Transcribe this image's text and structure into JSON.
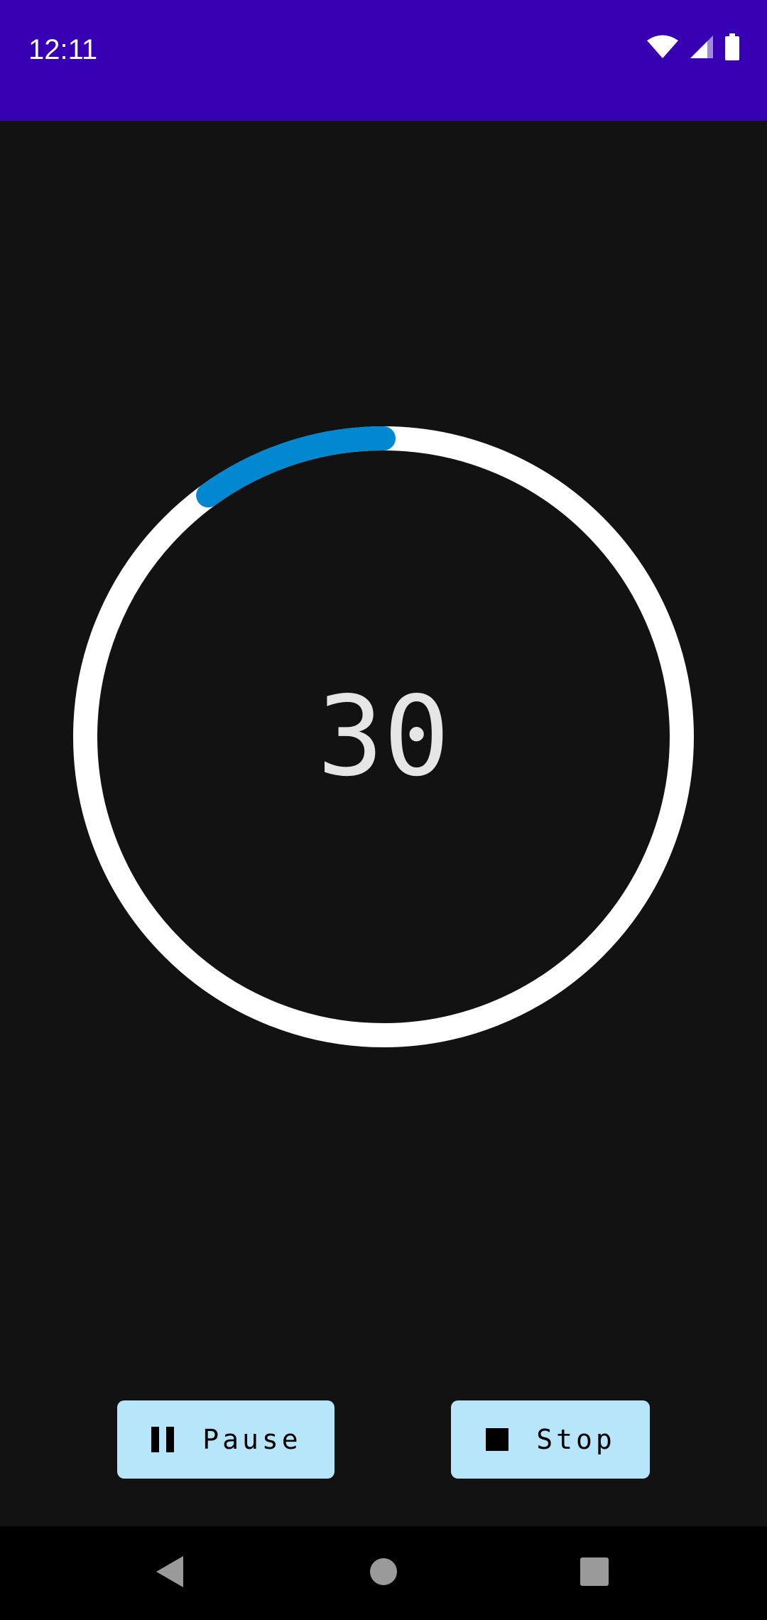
{
  "status_bar": {
    "time": "12:11",
    "background_color": "#3700B3",
    "icons": [
      "wifi-icon",
      "signal-icon",
      "battery-icon"
    ]
  },
  "timer": {
    "value": "30",
    "progress_fraction": 0.1,
    "ring_color": "#FFFFFF",
    "progress_color": "#0288D1"
  },
  "controls": {
    "pause_label": "Pause",
    "pause_icon": "pause-icon",
    "stop_label": "Stop",
    "stop_icon": "stop-icon",
    "button_color": "#B7E6FA"
  },
  "nav_bar": {
    "icons": [
      "back-icon",
      "home-icon",
      "recents-icon"
    ]
  }
}
